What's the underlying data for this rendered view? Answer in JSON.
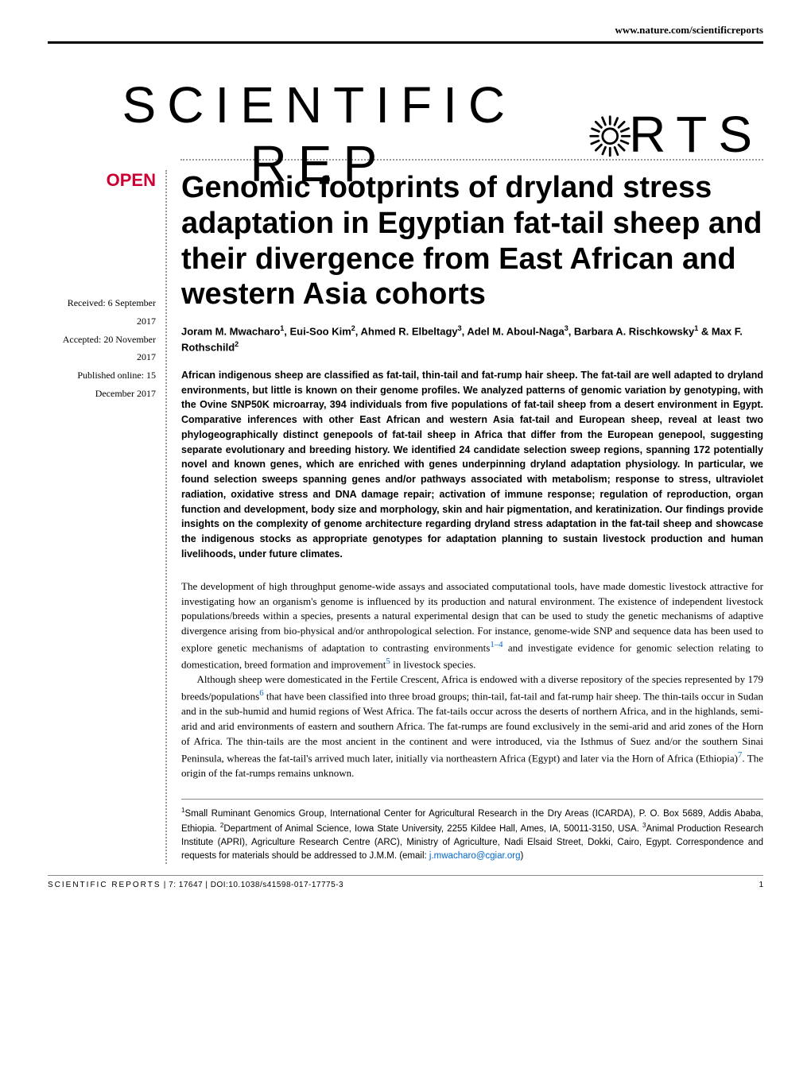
{
  "header": {
    "site_url": "www.nature.com/scientificreports"
  },
  "logo": {
    "journal_name_pre": "SCIENTIFIC REP",
    "journal_name_post": "RTS",
    "logo_color": "#000000"
  },
  "badge": {
    "open_access": "OPEN",
    "badge_color": "#cc0033"
  },
  "meta": {
    "received": "Received: 6 September 2017",
    "accepted": "Accepted: 20 November 2017",
    "published": "Published online: 15 December 2017"
  },
  "article": {
    "title": "Genomic footprints of dryland stress adaptation in Egyptian fat-tail sheep and their divergence from East African and western Asia cohorts",
    "title_fontsize": 38,
    "authors_html": "Joram M. Mwacharo<sup>1</sup>, Eui-Soo Kim<sup>2</sup>, Ahmed R. Elbeltagy<sup>3</sup>, Adel M. Aboul-Naga<sup>3</sup>, Barbara A. Rischkowsky<sup>1</sup> & Max F. Rothschild<sup>2</sup>"
  },
  "abstract": {
    "text": "African indigenous sheep are classified as fat-tail, thin-tail and fat-rump hair sheep. The fat-tail are well adapted to dryland environments, but little is known on their genome profiles. We analyzed patterns of genomic variation by genotyping, with the Ovine SNP50K microarray, 394 individuals from five populations of fat-tail sheep from a desert environment in Egypt. Comparative inferences with other East African and western Asia fat-tail and European sheep, reveal at least two phylogeographically distinct genepools of fat-tail sheep in Africa that differ from the European genepool, suggesting separate evolutionary and breeding history. We identified 24 candidate selection sweep regions, spanning 172 potentially novel and known genes, which are enriched with genes underpinning dryland adaptation physiology. In particular, we found selection sweeps spanning genes and/or pathways associated with metabolism; response to stress, ultraviolet radiation, oxidative stress and DNA damage repair; activation of immune response; regulation of reproduction, organ function and development, body size and morphology, skin and hair pigmentation, and keratinization. Our findings provide insights on the complexity of genome architecture regarding dryland stress adaptation in the fat-tail sheep and showcase the indigenous stocks as appropriate genotypes for adaptation planning to sustain livestock production and human livelihoods, under future climates."
  },
  "body": {
    "p1_pre": "The development of high throughput genome-wide assays and associated computational tools, have made domestic livestock attractive for investigating how an organism's genome is influenced by its production and natural environment. The existence of independent livestock populations/breeds within a species, presents a natural experimental design that can be used to study the genetic mechanisms of adaptive divergence arising from bio-physical and/or anthropological selection. For instance, genome-wide SNP and sequence data has been used to explore genetic mechanisms of adaptation to contrasting environments",
    "p1_ref1": "1–4",
    "p1_mid": " and investigate evidence for genomic selection relating to domestication, breed formation and improvement",
    "p1_ref2": "5",
    "p1_post": " in livestock species.",
    "p2_pre": "Although sheep were domesticated in the Fertile Crescent, Africa is endowed with a diverse repository of the species represented by 179 breeds/populations",
    "p2_ref1": "6",
    "p2_mid": " that have been classified into three broad groups; thin-tail, fat-tail and fat-rump hair sheep. The thin-tails occur in Sudan and in the sub-humid and humid regions of West Africa. The fat-tails occur across the deserts of northern Africa, and in the highlands, semi-arid and arid environments of eastern and southern Africa. The fat-rumps are found exclusively in the semi-arid and arid zones of the Horn of Africa. The thin-tails are the most ancient in the continent and were introduced, via the Isthmus of Suez and/or the southern Sinai Peninsula, whereas the fat-tail's arrived much later, initially via northeastern Africa (Egypt) and later via the Horn of Africa (Ethiopia)",
    "p2_ref2": "7",
    "p2_post": ". The origin of the fat-rumps remains unknown."
  },
  "affiliations": {
    "text_html": "<sup>1</sup>Small Ruminant Genomics Group, International Center for Agricultural Research in the Dry Areas (ICARDA), P. O. Box 5689, Addis Ababa, Ethiopia. <sup>2</sup>Department of Animal Science, Iowa State University, 2255 Kildee Hall, Ames, IA, 50011-3150, USA. <sup>3</sup>Animal Production Research Institute (APRI), Agriculture Research Centre (ARC), Ministry of Agriculture, Nadi Elsaid Street, Dokki, Cairo, Egypt. Correspondence and requests for materials should be addressed to J.M.M. (email: ",
    "email": "j.mwacharo@cgiar.org",
    "text_post": ")"
  },
  "footer": {
    "citation_brand": "SCIENTIFIC REPORTS",
    "citation_rest": " | 7: 17647 | DOI:10.1038/s41598-017-17775-3",
    "page_number": "1"
  },
  "colors": {
    "text": "#000000",
    "accent": "#cc0033",
    "link": "#0066cc",
    "dotted": "#999999",
    "background": "#ffffff"
  }
}
